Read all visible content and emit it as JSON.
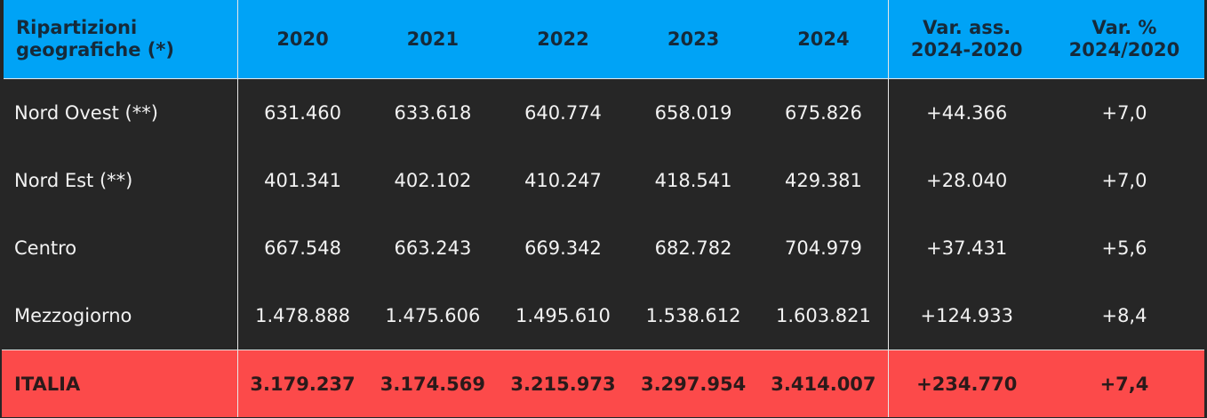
{
  "colors": {
    "header_bg": "#00a3f6",
    "body_bg": "#262626",
    "total_bg": "#fc4a4a"
  },
  "chart_data": {
    "type": "table",
    "columns": [
      "Ripartizioni geografiche (*)",
      "2020",
      "2021",
      "2022",
      "2023",
      "2024",
      "Var. ass. 2024-2020",
      "Var. % 2024/2020"
    ],
    "header": {
      "region": [
        "Ripartizioni",
        "geografiche (*)"
      ],
      "years": [
        "2020",
        "2021",
        "2022",
        "2023",
        "2024"
      ],
      "var_ass": [
        "Var. ass.",
        "2024-2020"
      ],
      "var_pct": [
        "Var. %",
        "2024/2020"
      ]
    },
    "rows": [
      {
        "label": "Nord Ovest (**)",
        "values": [
          "631.460",
          "633.618",
          "640.774",
          "658.019",
          "675.826"
        ],
        "var_ass": "+44.366",
        "var_pct": "+7,0"
      },
      {
        "label": "Nord Est (**)",
        "values": [
          "401.341",
          "402.102",
          "410.247",
          "418.541",
          "429.381"
        ],
        "var_ass": "+28.040",
        "var_pct": "+7,0"
      },
      {
        "label": "Centro",
        "values": [
          "667.548",
          "663.243",
          "669.342",
          "682.782",
          "704.979"
        ],
        "var_ass": "+37.431",
        "var_pct": "+5,6"
      },
      {
        "label": "Mezzogiorno",
        "values": [
          "1.478.888",
          "1.475.606",
          "1.495.610",
          "1.538.612",
          "1.603.821"
        ],
        "var_ass": "+124.933",
        "var_pct": "+8,4"
      },
      {
        "label": "ITALIA",
        "values": [
          "3.179.237",
          "3.174.569",
          "3.215.973",
          "3.297.954",
          "3.414.007"
        ],
        "var_ass": "+234.770",
        "var_pct": "+7,4",
        "total": true
      }
    ]
  }
}
